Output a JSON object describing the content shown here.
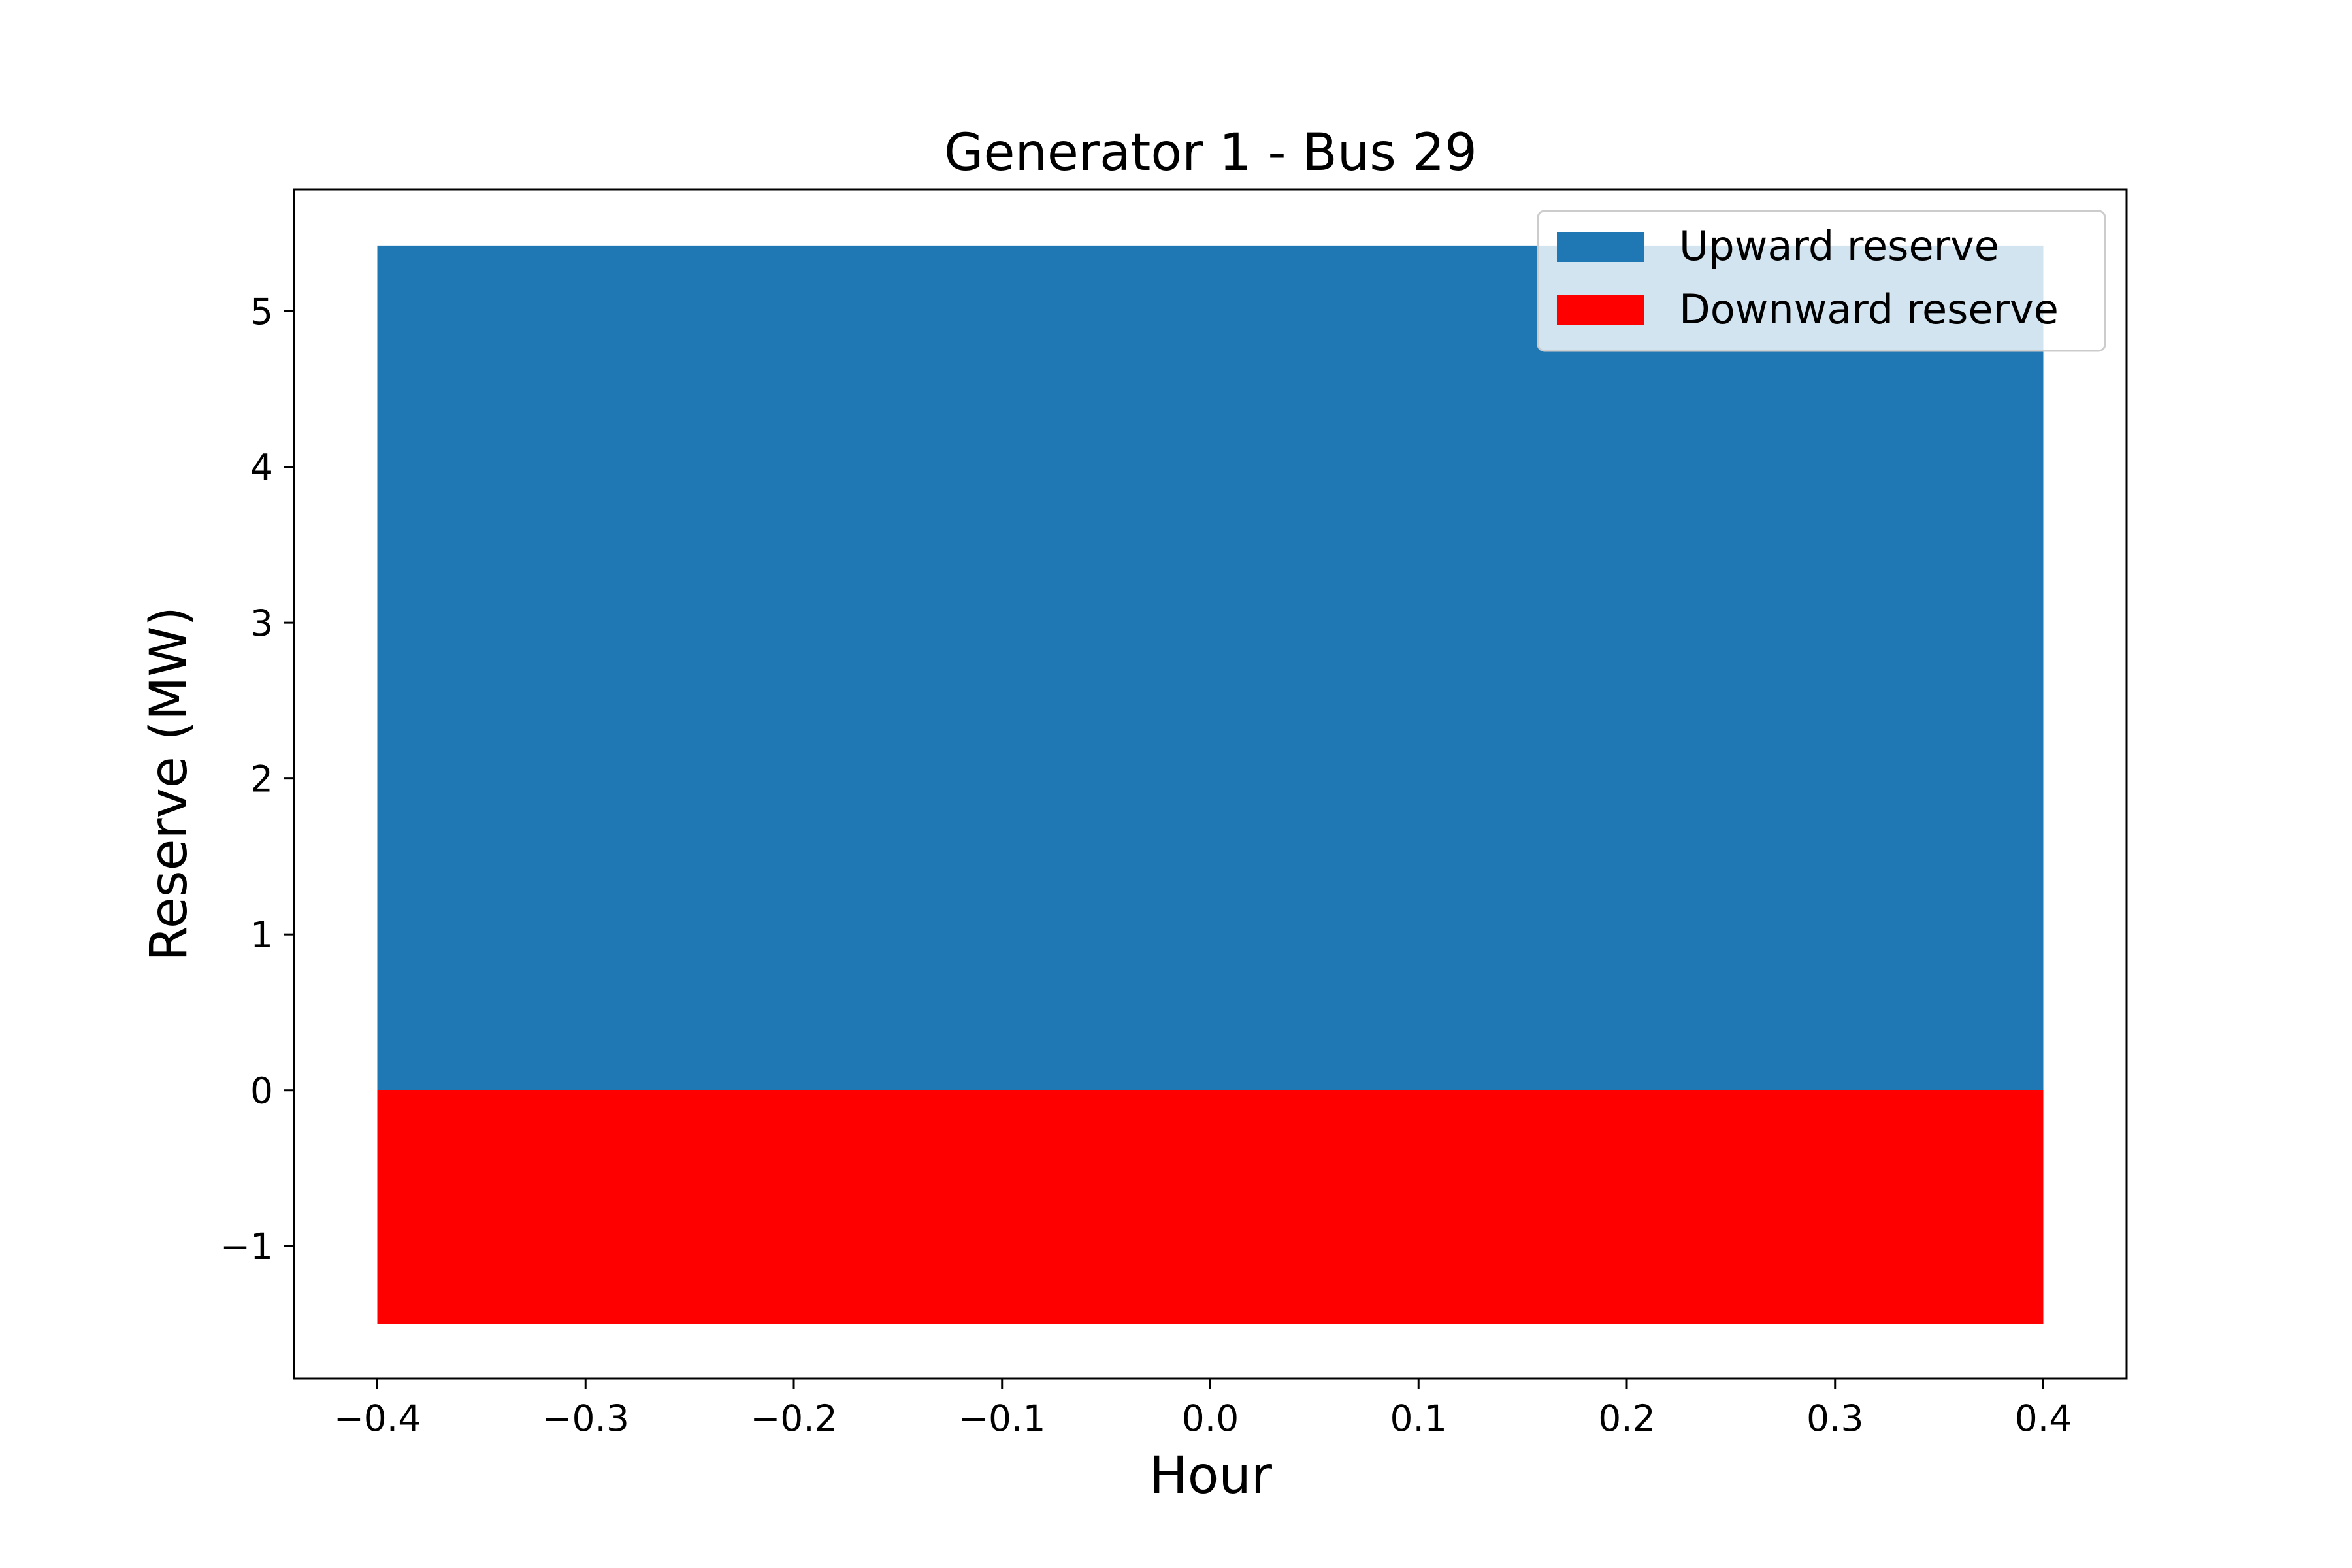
{
  "chart_data": {
    "type": "bar",
    "title": "Generator 1 - Bus 29",
    "xlabel": "Hour",
    "ylabel": "Reserve (MW)",
    "xlim": [
      -0.44,
      0.44
    ],
    "ylim": [
      -1.85,
      5.78
    ],
    "x_ticks": [
      -0.4,
      -0.3,
      -0.2,
      -0.1,
      0.0,
      0.1,
      0.2,
      0.3,
      0.4
    ],
    "x_tick_labels": [
      "−0.4",
      "−0.3",
      "−0.2",
      "−0.1",
      "0.0",
      "0.1",
      "0.2",
      "0.3",
      "0.4"
    ],
    "y_ticks": [
      -1,
      0,
      1,
      2,
      3,
      4,
      5
    ],
    "y_tick_labels": [
      "−1",
      "0",
      "1",
      "2",
      "3",
      "4",
      "5"
    ],
    "grid": false,
    "legend_position": "top-right",
    "bar_width": 0.8,
    "categories": [
      0
    ],
    "series": [
      {
        "name": "Upward reserve",
        "values": [
          5.42
        ],
        "color": "#1f77b4"
      },
      {
        "name": "Downward reserve",
        "values": [
          -1.5
        ],
        "color": "#ff0000"
      }
    ]
  }
}
